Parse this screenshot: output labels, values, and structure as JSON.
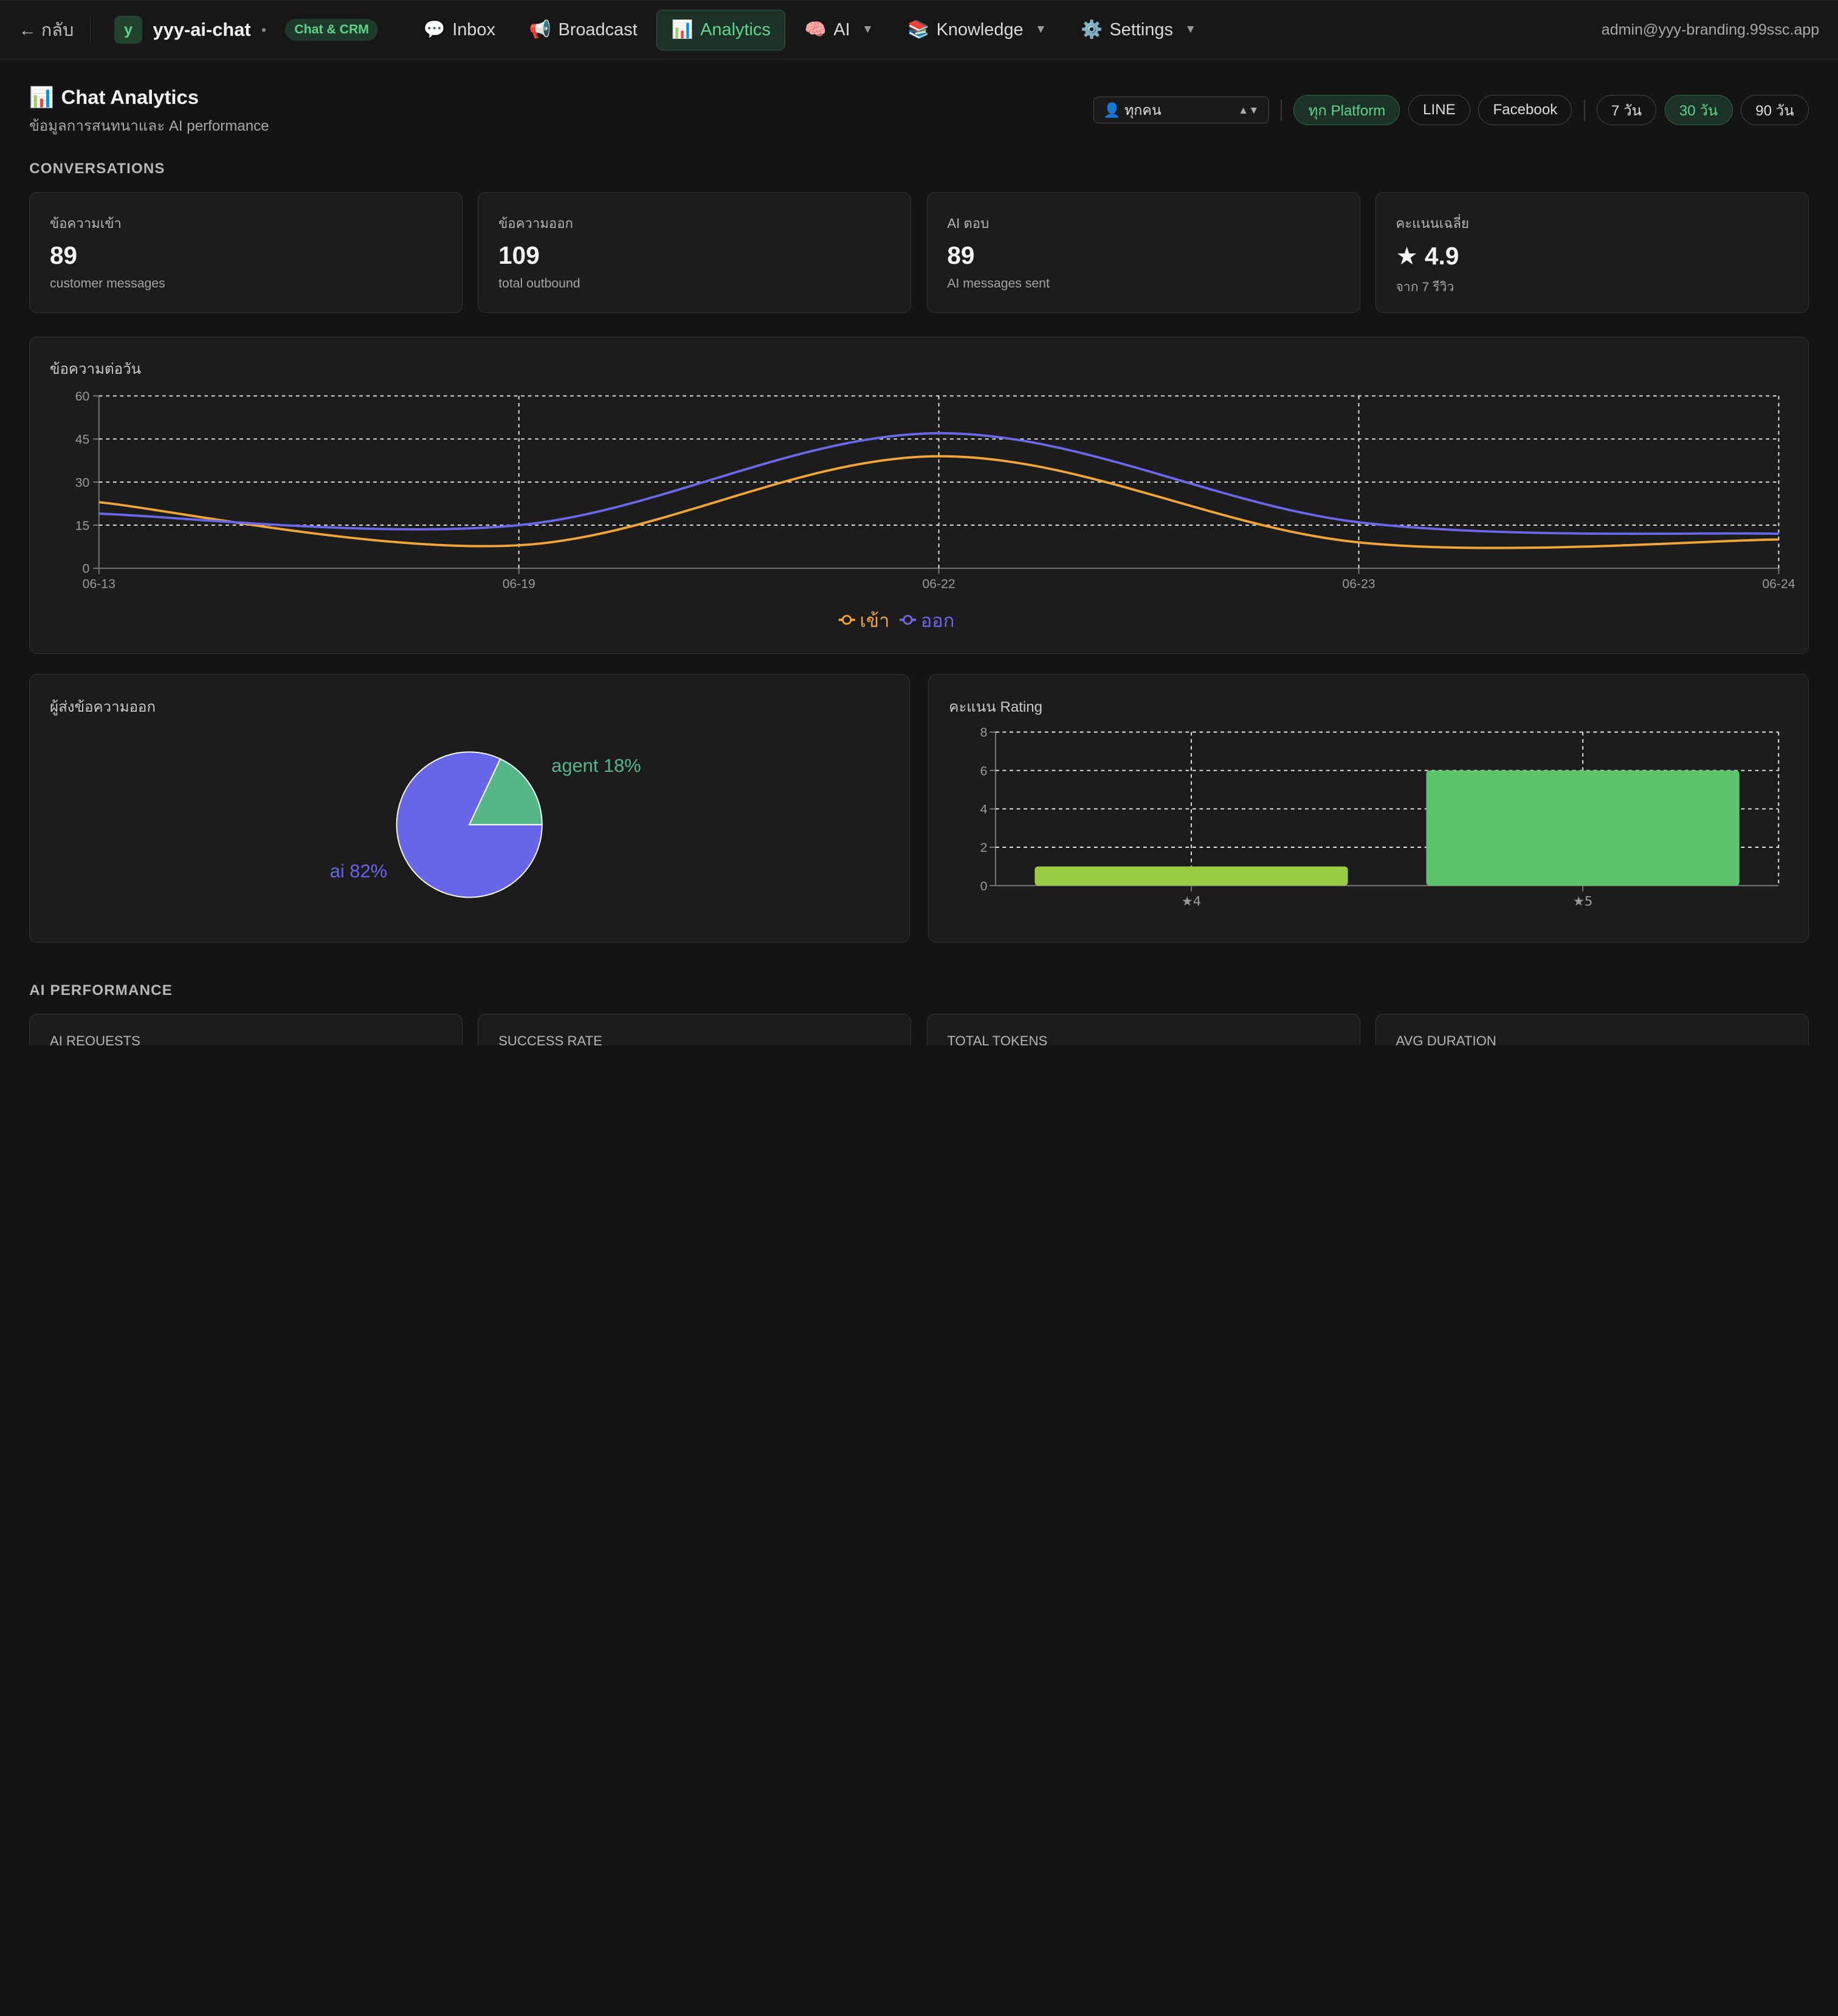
{
  "nav": {
    "back_label": "← กลับ",
    "workspace_initial": "y",
    "workspace_name": "yyy-ai-chat",
    "workspace_dot": "•",
    "badge": "Chat & CRM",
    "items": [
      {
        "icon": "💬",
        "label": "Inbox",
        "dropdown": false
      },
      {
        "icon": "📢",
        "label": "Broadcast",
        "dropdown": false
      },
      {
        "icon": "📊",
        "label": "Analytics",
        "dropdown": false,
        "active": true
      },
      {
        "icon": "🧠",
        "label": "AI",
        "dropdown": true
      },
      {
        "icon": "📚",
        "label": "Knowledge",
        "dropdown": true
      },
      {
        "icon": "⚙️",
        "label": "Settings",
        "dropdown": true
      }
    ],
    "account": "admin@yyy-branding.99ssc.app"
  },
  "header": {
    "icon": "📊",
    "title": "Chat Analytics",
    "subtitle": "ข้อมูลการสนทนาและ AI performance"
  },
  "filters": {
    "agent_select": "👤 ทุกคน",
    "platforms": [
      "ทุก Platform",
      "LINE",
      "Facebook"
    ],
    "platform_selected": "ทุก Platform",
    "ranges": [
      "7 วัน",
      "30 วัน",
      "90 วัน"
    ],
    "range_selected": "30 วัน"
  },
  "sections": {
    "conversations": "CONVERSATIONS",
    "ai_performance": "AI PERFORMANCE"
  },
  "stats": [
    {
      "label": "ข้อความเข้า",
      "value": "89",
      "hint": "customer messages"
    },
    {
      "label": "ข้อความออก",
      "value": "109",
      "hint": "total outbound"
    },
    {
      "label": "AI ตอบ",
      "value": "89",
      "hint": "AI messages sent"
    },
    {
      "label": "คะแนนเฉลี่ย",
      "value": "★ 4.9",
      "hint": "จาก 7 รีวิว"
    }
  ],
  "ai_stats": [
    {
      "label": "AI REQUESTS"
    },
    {
      "label": "SUCCESS RATE"
    },
    {
      "label": "TOTAL TOKENS"
    },
    {
      "label": "AVG DURATION"
    }
  ],
  "colors": {
    "accent_green": "#5fd38d",
    "series_in": "#f0a53a",
    "series_out": "#6a68e8",
    "pie_ai": "#6766e9",
    "pie_agent": "#55b787",
    "bar_4": "#99cc44",
    "bar_5": "#5cc46a"
  },
  "chart_data": [
    {
      "type": "line",
      "title": "ข้อความต่อวัน",
      "x": [
        "06-13",
        "06-19",
        "06-22",
        "06-23",
        "06-24"
      ],
      "series": [
        {
          "name": "เข้า",
          "values": [
            23,
            8,
            39,
            9,
            10
          ]
        },
        {
          "name": "ออก",
          "values": [
            19,
            15,
            47,
            16,
            12
          ]
        }
      ],
      "ylim": [
        0,
        60
      ],
      "yticks": [
        0,
        15,
        30,
        45,
        60
      ],
      "grid": true,
      "legend": "bottom-center"
    },
    {
      "type": "pie",
      "title": "ผู้ส่งข้อความออก",
      "slices": [
        {
          "name": "ai",
          "value": 82,
          "label": "ai 82%"
        },
        {
          "name": "agent",
          "value": 18,
          "label": "agent 18%"
        }
      ]
    },
    {
      "type": "bar",
      "title": "คะแนน Rating",
      "categories": [
        "★4",
        "★5"
      ],
      "values": [
        1,
        6
      ],
      "ylim": [
        0,
        8
      ],
      "yticks": [
        0,
        2,
        4,
        6,
        8
      ],
      "grid": true
    }
  ]
}
